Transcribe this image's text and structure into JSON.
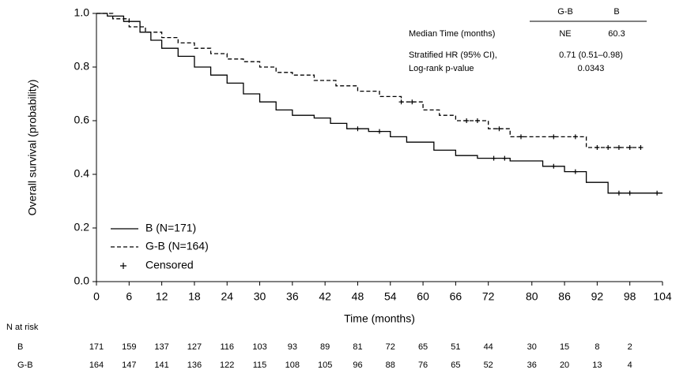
{
  "chart_data": {
    "type": "step",
    "x_label": "Time (months)",
    "y_label": "Overall survival (probability)",
    "xlim": [
      0,
      104
    ],
    "ylim": [
      0,
      1
    ],
    "xticks": [
      0,
      6,
      12,
      18,
      24,
      30,
      36,
      42,
      48,
      54,
      60,
      66,
      72,
      80,
      86,
      92,
      98,
      104
    ],
    "yticks": [
      {
        "value": 0,
        "label": "0.0"
      },
      {
        "value": 0.2,
        "label": "0.2"
      },
      {
        "value": 0.4,
        "label": "0.4"
      },
      {
        "value": 0.6,
        "label": "0.6"
      },
      {
        "value": 0.8,
        "label": "0.8"
      },
      {
        "value": 1,
        "label": "1.0"
      }
    ],
    "series": [
      {
        "name": "B (N=171)",
        "color": "#000000",
        "dash": "none",
        "x": [
          0,
          2,
          5,
          8,
          10,
          12,
          15,
          18,
          21,
          24,
          27,
          30,
          33,
          36,
          40,
          43,
          46,
          50,
          54,
          57,
          62,
          66,
          70,
          76,
          82,
          86,
          90,
          94,
          104
        ],
        "values": [
          1.0,
          0.99,
          0.97,
          0.93,
          0.9,
          0.87,
          0.84,
          0.8,
          0.77,
          0.74,
          0.7,
          0.67,
          0.64,
          0.62,
          0.61,
          0.59,
          0.57,
          0.56,
          0.54,
          0.52,
          0.49,
          0.47,
          0.46,
          0.45,
          0.43,
          0.41,
          0.37,
          0.33,
          0.33
        ]
      },
      {
        "name": "G-B (N=164)",
        "color": "#000000",
        "dash": "5,3",
        "x": [
          0,
          3,
          6,
          9,
          12,
          15,
          18,
          21,
          24,
          27,
          30,
          33,
          36,
          40,
          44,
          48,
          52,
          56,
          60,
          63,
          66,
          72,
          76,
          80,
          90,
          100
        ],
        "values": [
          1.0,
          0.98,
          0.95,
          0.93,
          0.91,
          0.89,
          0.87,
          0.85,
          0.83,
          0.82,
          0.8,
          0.78,
          0.77,
          0.75,
          0.73,
          0.71,
          0.69,
          0.67,
          0.64,
          0.62,
          0.6,
          0.57,
          0.54,
          0.54,
          0.5,
          0.5
        ]
      },
      {
        "name": "Censored",
        "color": "#000000",
        "marker": "+",
        "x": [
          48,
          52,
          73,
          75,
          84,
          88,
          96,
          98,
          103,
          56,
          58,
          68,
          70,
          74,
          78,
          84,
          88,
          92,
          94,
          96,
          98,
          100
        ],
        "values": [
          0.57,
          0.56,
          0.46,
          0.46,
          0.43,
          0.41,
          0.33,
          0.33,
          0.33,
          0.67,
          0.67,
          0.6,
          0.6,
          0.57,
          0.54,
          0.54,
          0.54,
          0.5,
          0.5,
          0.5,
          0.5,
          0.5
        ]
      }
    ],
    "stats_table": {
      "columns": [
        "G-B",
        "B"
      ],
      "rows": [
        {
          "label": "Median Time (months)",
          "cells": [
            "NE",
            "60.3"
          ]
        },
        {
          "label": "Stratified HR (95% CI),",
          "cells": [
            "0.71 (0.51–0.98)"
          ]
        },
        {
          "label": "Log-rank p-value",
          "cells": [
            "0.0343"
          ]
        }
      ]
    },
    "risk_table": {
      "title": "N at risk",
      "rows": [
        {
          "label": "B",
          "values": [
            171,
            159,
            137,
            127,
            116,
            103,
            93,
            89,
            81,
            72,
            65,
            51,
            44,
            30,
            15,
            8,
            2
          ]
        },
        {
          "label": "G-B",
          "values": [
            164,
            147,
            141,
            136,
            122,
            115,
            108,
            105,
            96,
            88,
            76,
            65,
            52,
            36,
            20,
            13,
            4
          ]
        }
      ]
    }
  }
}
